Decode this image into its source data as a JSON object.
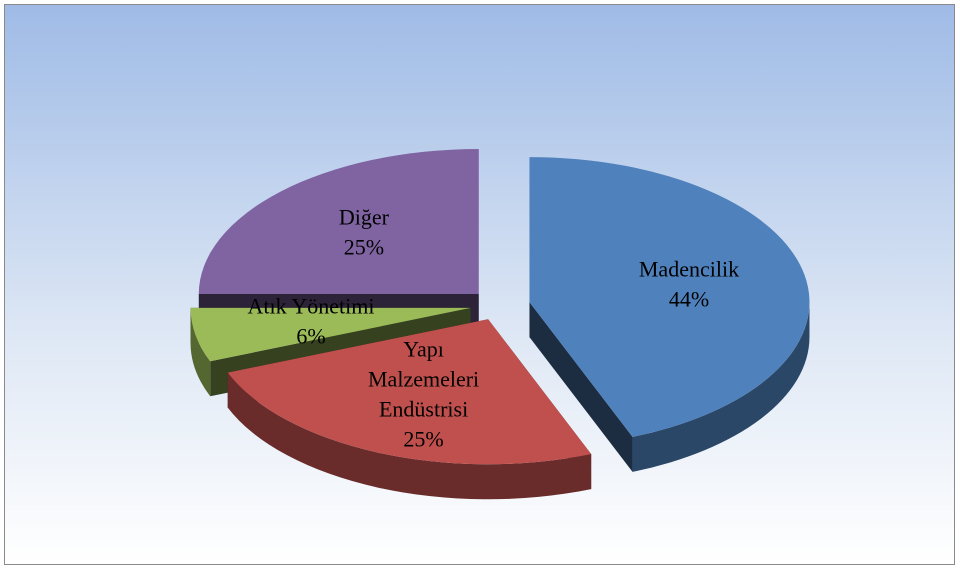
{
  "chart_data": {
    "type": "pie",
    "categories": [
      "Madencilik",
      "Yapı Malzemeleri Endüstrisi",
      "Atık Yönetimi",
      "Diğer"
    ],
    "values": [
      44,
      25,
      6,
      25
    ],
    "value_labels": [
      "44%",
      "25%",
      "6%",
      "25%"
    ],
    "colors": [
      "#4f81bd",
      "#c0504d",
      "#9bbb59",
      "#8064a2"
    ]
  }
}
